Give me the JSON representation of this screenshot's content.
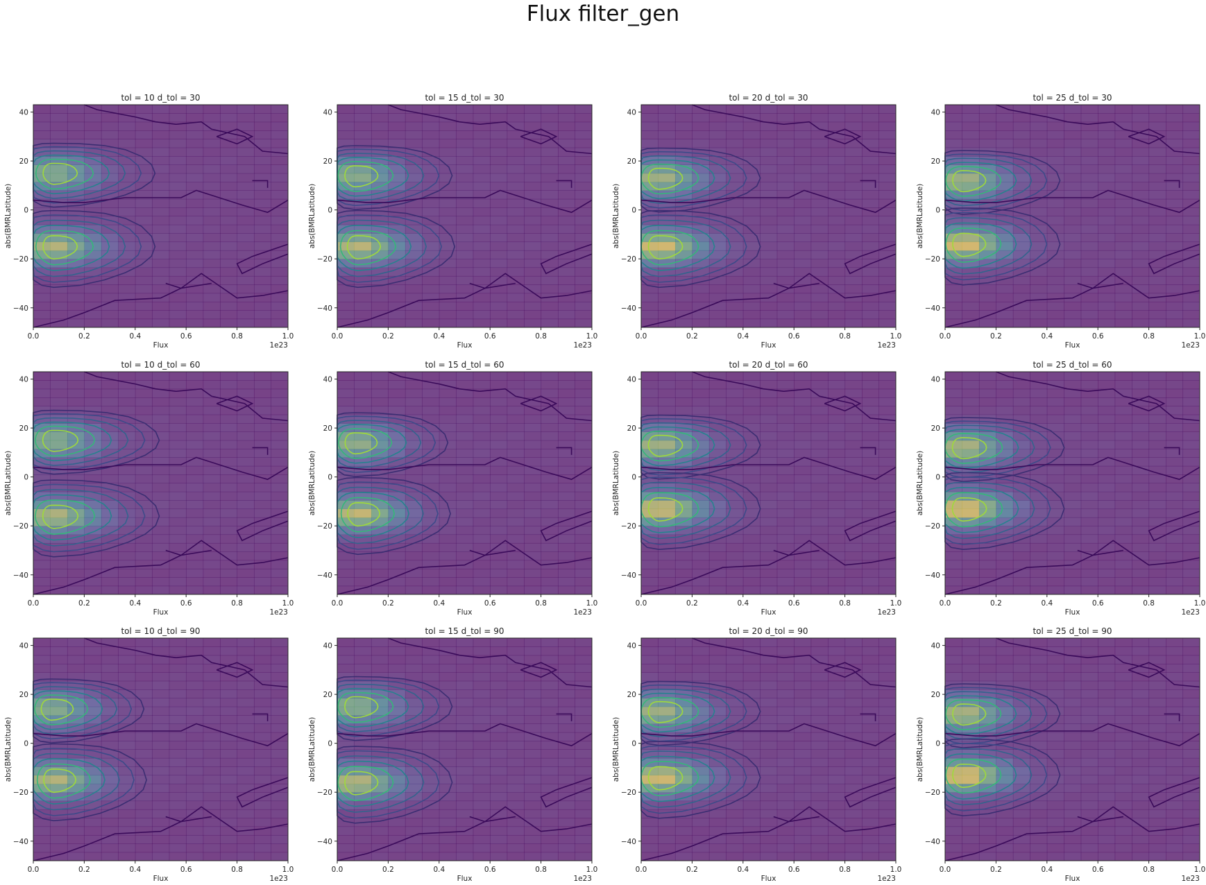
{
  "title": "Flux filter_gen",
  "colormap": [
    "#440154",
    "#3b528b",
    "#21918c",
    "#5ec962",
    "#fde725"
  ],
  "chart_data": [
    {
      "type": "heatmap",
      "title": "tol = 10 d_tol = 30",
      "xlabel": "Flux",
      "ylabel": "abs(BMRLatitude)",
      "x_offset": "1e23",
      "xlim": [
        0,
        1
      ],
      "ylim": [
        -48,
        43
      ],
      "xticks": [
        "0.0",
        "0.2",
        "0.4",
        "0.6",
        "0.8",
        "1.0"
      ],
      "yticks": [
        40,
        20,
        0,
        -20,
        -40
      ],
      "peak_north_flux": 0.08,
      "peak_north_lat": 15,
      "peak_south_flux": 0.08,
      "peak_south_lat": -15,
      "extent": 0.42,
      "intensity": 0.8,
      "grid": false
    },
    {
      "type": "heatmap",
      "title": "tol = 15 d_tol = 30",
      "xlabel": "Flux",
      "ylabel": "abs(BMRLatitude)",
      "x_offset": "1e23",
      "xlim": [
        0,
        1
      ],
      "ylim": [
        -48,
        43
      ],
      "xticks": [
        "0.0",
        "0.2",
        "0.4",
        "0.6",
        "0.8",
        "1.0"
      ],
      "yticks": [
        40,
        20,
        0,
        -20,
        -40
      ],
      "peak_north_flux": 0.07,
      "peak_north_lat": 14,
      "peak_south_flux": 0.08,
      "peak_south_lat": -15,
      "extent": 0.4,
      "intensity": 0.82,
      "grid": false
    },
    {
      "type": "heatmap",
      "title": "tol = 20 d_tol = 30",
      "xlabel": "Flux",
      "ylabel": "abs(BMRLatitude)",
      "x_offset": "1e23",
      "xlim": [
        0,
        1
      ],
      "ylim": [
        -48,
        43
      ],
      "xticks": [
        "0.0",
        "0.2",
        "0.4",
        "0.6",
        "0.8",
        "1.0"
      ],
      "yticks": [
        40,
        20,
        0,
        -20,
        -40
      ],
      "peak_north_flux": 0.07,
      "peak_north_lat": 13,
      "peak_south_flux": 0.07,
      "peak_south_lat": -15,
      "extent": 0.42,
      "intensity": 0.9,
      "grid": false
    },
    {
      "type": "heatmap",
      "title": "tol = 25 d_tol = 30",
      "xlabel": "Flux",
      "ylabel": "abs(BMRLatitude)",
      "x_offset": "1e23",
      "xlim": [
        0,
        1
      ],
      "ylim": [
        -48,
        43
      ],
      "xticks": [
        "0.0",
        "0.2",
        "0.4",
        "0.6",
        "0.8",
        "1.0"
      ],
      "yticks": [
        40,
        20,
        0,
        -20,
        -40
      ],
      "peak_north_flux": 0.07,
      "peak_north_lat": 12,
      "peak_south_flux": 0.07,
      "peak_south_lat": -14,
      "extent": 0.4,
      "intensity": 0.92,
      "grid": false
    },
    {
      "type": "heatmap",
      "title": "tol = 10 d_tol = 60",
      "xlabel": "Flux",
      "ylabel": "abs(BMRLatitude)",
      "x_offset": "1e23",
      "xlim": [
        0,
        1
      ],
      "ylim": [
        -48,
        43
      ],
      "xticks": [
        "0.0",
        "0.2",
        "0.4",
        "0.6",
        "0.8",
        "1.0"
      ],
      "yticks": [
        40,
        20,
        0,
        -20,
        -40
      ],
      "peak_north_flux": 0.08,
      "peak_north_lat": 15,
      "peak_south_flux": 0.08,
      "peak_south_lat": -16,
      "extent": 0.44,
      "intensity": 0.8,
      "grid": false
    },
    {
      "type": "heatmap",
      "title": "tol = 15 d_tol = 60",
      "xlabel": "Flux",
      "ylabel": "abs(BMRLatitude)",
      "x_offset": "1e23",
      "xlim": [
        0,
        1
      ],
      "ylim": [
        -48,
        43
      ],
      "xticks": [
        "0.0",
        "0.2",
        "0.4",
        "0.6",
        "0.8",
        "1.0"
      ],
      "yticks": [
        40,
        20,
        0,
        -20,
        -40
      ],
      "peak_north_flux": 0.07,
      "peak_north_lat": 14,
      "peak_south_flux": 0.08,
      "peak_south_lat": -15,
      "extent": 0.38,
      "intensity": 0.85,
      "grid": false
    },
    {
      "type": "heatmap",
      "title": "tol = 20 d_tol = 60",
      "xlabel": "Flux",
      "ylabel": "abs(BMRLatitude)",
      "x_offset": "1e23",
      "xlim": [
        0,
        1
      ],
      "ylim": [
        -48,
        43
      ],
      "xticks": [
        "0.0",
        "0.2",
        "0.4",
        "0.6",
        "0.8",
        "1.0"
      ],
      "yticks": [
        40,
        20,
        0,
        -20,
        -40
      ],
      "peak_north_flux": 0.07,
      "peak_north_lat": 13,
      "peak_south_flux": 0.07,
      "peak_south_lat": -13,
      "extent": 0.42,
      "intensity": 0.9,
      "grid": false
    },
    {
      "type": "heatmap",
      "title": "tol = 25 d_tol = 60",
      "xlabel": "Flux",
      "ylabel": "abs(BMRLatitude)",
      "x_offset": "1e23",
      "xlim": [
        0,
        1
      ],
      "ylim": [
        -48,
        43
      ],
      "xticks": [
        "0.0",
        "0.2",
        "0.4",
        "0.6",
        "0.8",
        "1.0"
      ],
      "yticks": [
        40,
        20,
        0,
        -20,
        -40
      ],
      "peak_north_flux": 0.07,
      "peak_north_lat": 12,
      "peak_south_flux": 0.07,
      "peak_south_lat": -13,
      "extent": 0.42,
      "intensity": 0.95,
      "grid": false
    },
    {
      "type": "heatmap",
      "title": "tol = 10 d_tol = 90",
      "xlabel": "Flux",
      "ylabel": "abs(BMRLatitude)",
      "x_offset": "1e23",
      "xlim": [
        0,
        1
      ],
      "ylim": [
        -48,
        43
      ],
      "xticks": [
        "0.0",
        "0.2",
        "0.4",
        "0.6",
        "0.8",
        "1.0"
      ],
      "yticks": [
        40,
        20,
        0,
        -20,
        -40
      ],
      "peak_north_flux": 0.07,
      "peak_north_lat": 14,
      "peak_south_flux": 0.08,
      "peak_south_lat": -15,
      "extent": 0.38,
      "intensity": 0.8,
      "grid": false
    },
    {
      "type": "heatmap",
      "title": "tol = 15 d_tol = 90",
      "xlabel": "Flux",
      "ylabel": "abs(BMRLatitude)",
      "x_offset": "1e23",
      "xlim": [
        0,
        1
      ],
      "ylim": [
        -48,
        43
      ],
      "xticks": [
        "0.0",
        "0.2",
        "0.4",
        "0.6",
        "0.8",
        "1.0"
      ],
      "yticks": [
        40,
        20,
        0,
        -20,
        -40
      ],
      "peak_north_flux": 0.07,
      "peak_north_lat": 15,
      "peak_south_flux": 0.07,
      "peak_south_lat": -16,
      "extent": 0.4,
      "intensity": 0.82,
      "grid": false
    },
    {
      "type": "heatmap",
      "title": "tol = 20 d_tol = 90",
      "xlabel": "Flux",
      "ylabel": "abs(BMRLatitude)",
      "x_offset": "1e23",
      "xlim": [
        0,
        1
      ],
      "ylim": [
        -48,
        43
      ],
      "xticks": [
        "0.0",
        "0.2",
        "0.4",
        "0.6",
        "0.8",
        "1.0"
      ],
      "yticks": [
        40,
        20,
        0,
        -20,
        -40
      ],
      "peak_north_flux": 0.07,
      "peak_north_lat": 13,
      "peak_south_flux": 0.07,
      "peak_south_lat": -14,
      "extent": 0.42,
      "intensity": 0.9,
      "grid": false
    },
    {
      "type": "heatmap",
      "title": "tol = 25 d_tol = 90",
      "xlabel": "Flux",
      "ylabel": "abs(BMRLatitude)",
      "x_offset": "1e23",
      "xlim": [
        0,
        1
      ],
      "ylim": [
        -48,
        43
      ],
      "xticks": [
        "0.0",
        "0.2",
        "0.4",
        "0.6",
        "0.8",
        "1.0"
      ],
      "yticks": [
        40,
        20,
        0,
        -20,
        -40
      ],
      "peak_north_flux": 0.07,
      "peak_north_lat": 12,
      "peak_south_flux": 0.07,
      "peak_south_lat": -13,
      "extent": 0.4,
      "intensity": 0.95,
      "grid": false
    }
  ]
}
